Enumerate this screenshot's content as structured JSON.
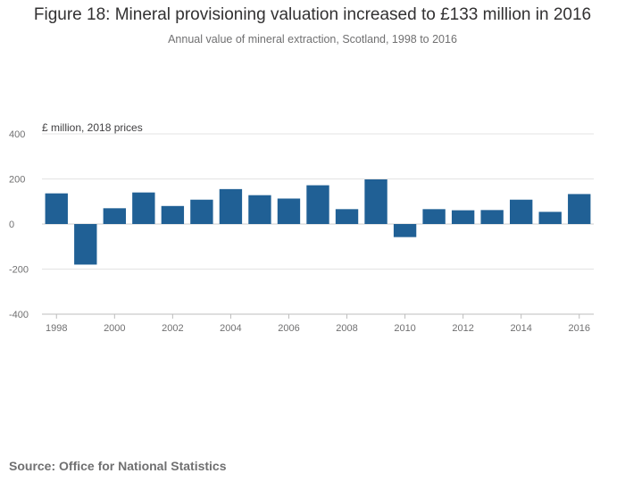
{
  "title": "Figure 18: Mineral provisioning valuation increased to £133 million in 2016",
  "subtitle": "Annual value of mineral extraction, Scotland, 1998 to 2016",
  "source": "Source: Office for National Statistics",
  "colors": {
    "bar": "#206095",
    "grid": "#e3e3e3",
    "axis": "#bcbcbc"
  },
  "chart_data": {
    "type": "bar",
    "ylabel": "£ million, 2018 prices",
    "xlabel": "",
    "ylim": [
      -400,
      400
    ],
    "y_ticks": [
      400,
      200,
      0,
      -200,
      -400
    ],
    "y_tick_labels": [
      "400",
      "200",
      "0",
      "-200",
      "-400"
    ],
    "categories": [
      "1998",
      "1999",
      "2000",
      "2001",
      "2002",
      "2003",
      "2004",
      "2005",
      "2006",
      "2007",
      "2008",
      "2009",
      "2010",
      "2011",
      "2012",
      "2013",
      "2014",
      "2015",
      "2016"
    ],
    "x_tick_labels": [
      "1998",
      "2000",
      "2002",
      "2004",
      "2006",
      "2008",
      "2010",
      "2012",
      "2014",
      "2016"
    ],
    "series": [
      {
        "name": "Annual value",
        "values": [
          136,
          -180,
          70,
          140,
          80,
          108,
          155,
          128,
          113,
          172,
          66,
          198,
          -58,
          66,
          61,
          62,
          108,
          54,
          133
        ]
      }
    ]
  }
}
